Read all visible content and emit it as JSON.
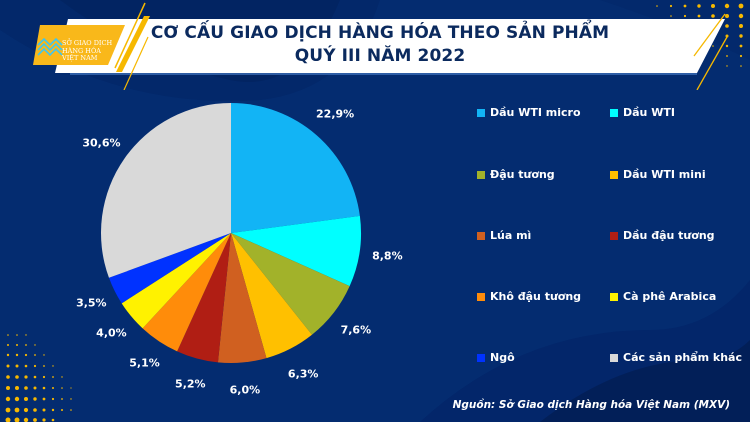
{
  "header": {
    "title_line1": "CƠ CẤU GIAO DỊCH HÀNG HÓA THEO SẢN PHẨM",
    "title_line2": "QUÝ III NĂM 2022",
    "logo_line1": "SỞ GIAO DỊCH",
    "logo_line2": "HÀNG HÓA",
    "logo_line3": "VIỆT NAM"
  },
  "legend": {
    "items": [
      {
        "label": "Dầu WTI micro",
        "color": "#12b4f5"
      },
      {
        "label": "Dầu WTI",
        "color": "#00ffff"
      },
      {
        "label": "Đậu tương",
        "color": "#a2b22a"
      },
      {
        "label": "Dầu WTI mini",
        "color": "#ffc000"
      },
      {
        "label": "Lúa mì",
        "color": "#d06020"
      },
      {
        "label": "Dầu đậu tương",
        "color": "#b01e14"
      },
      {
        "label": "Khô đậu tương",
        "color": "#ff8c0a"
      },
      {
        "label": "Cà phê Arabica",
        "color": "#fff200"
      },
      {
        "label": "Ngô",
        "color": "#0032ff"
      },
      {
        "label": "Các sản phẩm khác",
        "color": "#d9d9d9"
      }
    ]
  },
  "source": "Nguồn: Sở Giao dịch Hàng hóa Việt Nam (MXV)",
  "chart_data": {
    "type": "pie",
    "title": "CƠ CẤU GIAO DỊCH HÀNG HÓA THEO SẢN PHẨM QUÝ III NĂM 2022",
    "categories": [
      "Dầu WTI micro",
      "Dầu WTI",
      "Đậu tương",
      "Dầu WTI mini",
      "Lúa mì",
      "Dầu đậu tương",
      "Khô đậu tương",
      "Cà phê Arabica",
      "Ngô",
      "Các sản phẩm khác"
    ],
    "values": [
      22.9,
      8.8,
      7.6,
      6.3,
      6.0,
      5.2,
      5.1,
      4.0,
      3.5,
      30.6
    ],
    "labels": [
      "22,9%",
      "8,8%",
      "7,6%",
      "6,3%",
      "6,0%",
      "5,2%",
      "5,1%",
      "4,0%",
      "3,5%",
      "30,6%"
    ],
    "colors": [
      "#12b4f5",
      "#00ffff",
      "#a2b22a",
      "#ffc000",
      "#d06020",
      "#b01e14",
      "#ff8c0a",
      "#fff200",
      "#0032ff",
      "#d9d9d9"
    ],
    "unit": "%",
    "start_angle": "12 o'clock, clockwise",
    "legend_position": "right",
    "source": "Nguồn: Sở Giao dịch Hàng hóa Việt Nam (MXV)"
  }
}
